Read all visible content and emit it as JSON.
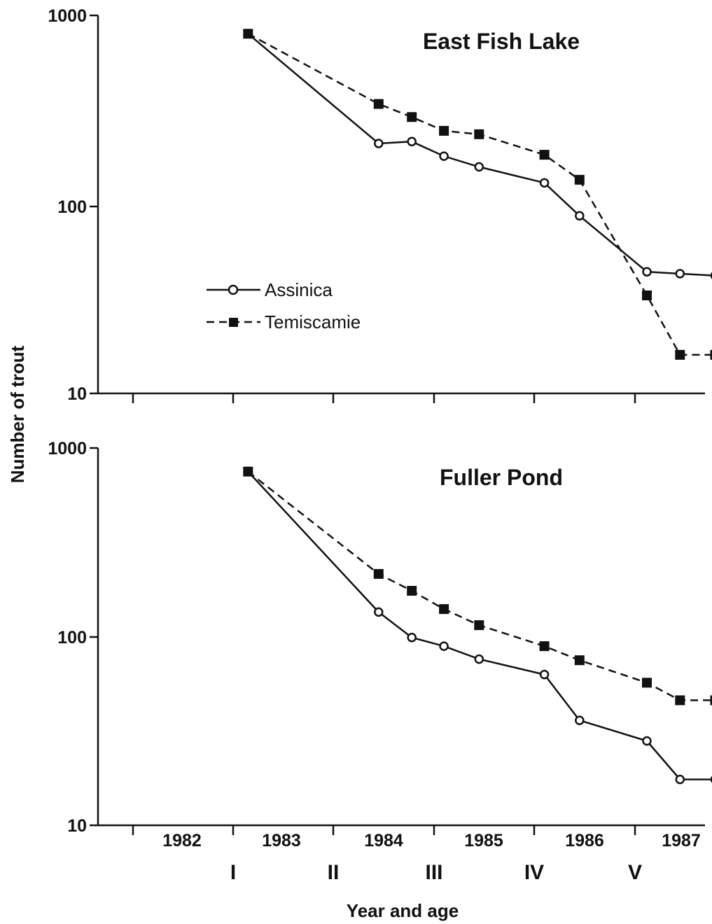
{
  "chart_data": [
    {
      "type": "line",
      "title": "East Fish Lake",
      "ylabel": "Number of trout",
      "y_scale": "log",
      "ylim": [
        10,
        1000
      ],
      "y_ticks": [
        "1000",
        "100",
        "10"
      ],
      "series": [
        {
          "name": "Assinica",
          "marker": "open-circle",
          "line": "solid",
          "color": "#111111",
          "points": [
            {
              "x": 1982.65,
              "y": 800
            },
            {
              "x": 1983.95,
              "y": 210
            },
            {
              "x": 1984.28,
              "y": 215
            },
            {
              "x": 1984.6,
              "y": 180
            },
            {
              "x": 1984.95,
              "y": 158
            },
            {
              "x": 1985.6,
              "y": 130
            },
            {
              "x": 1985.95,
              "y": 87
            },
            {
              "x": 1986.62,
              "y": 44
            },
            {
              "x": 1986.95,
              "y": 43
            },
            {
              "x": 1987.3,
              "y": 42
            }
          ]
        },
        {
          "name": "Temiscamie",
          "marker": "filled-square",
          "line": "dashed",
          "color": "#111111",
          "points": [
            {
              "x": 1982.65,
              "y": 800
            },
            {
              "x": 1983.95,
              "y": 340
            },
            {
              "x": 1984.28,
              "y": 290
            },
            {
              "x": 1984.6,
              "y": 245
            },
            {
              "x": 1984.95,
              "y": 235
            },
            {
              "x": 1985.6,
              "y": 183
            },
            {
              "x": 1985.95,
              "y": 135
            },
            {
              "x": 1986.62,
              "y": 33
            },
            {
              "x": 1986.95,
              "y": 16
            },
            {
              "x": 1987.3,
              "y": 16
            }
          ]
        }
      ],
      "legend": {
        "placement": "middle-left",
        "entries": [
          "Assinica",
          "Temiscamie"
        ]
      }
    },
    {
      "type": "line",
      "title": "Fuller Pond",
      "xlabel": "Year and age",
      "y_scale": "log",
      "ylim": [
        10,
        1000
      ],
      "y_ticks": [
        "1000",
        "100",
        "10"
      ],
      "x_year_labels": [
        "1982",
        "1983",
        "1984",
        "1985",
        "1986",
        "1987"
      ],
      "x_age_labels": [
        "I",
        "II",
        "III",
        "IV",
        "V"
      ],
      "series": [
        {
          "name": "Assinica",
          "marker": "open-circle",
          "line": "solid",
          "color": "#111111",
          "points": [
            {
              "x": 1982.65,
              "y": 750
            },
            {
              "x": 1983.95,
              "y": 135
            },
            {
              "x": 1984.28,
              "y": 99
            },
            {
              "x": 1984.6,
              "y": 89
            },
            {
              "x": 1984.95,
              "y": 76
            },
            {
              "x": 1985.6,
              "y": 63
            },
            {
              "x": 1985.95,
              "y": 36
            },
            {
              "x": 1986.62,
              "y": 28
            },
            {
              "x": 1986.95,
              "y": 17.5
            },
            {
              "x": 1987.3,
              "y": 17.5
            }
          ]
        },
        {
          "name": "Temiscamie",
          "marker": "filled-square",
          "line": "dashed",
          "color": "#111111",
          "points": [
            {
              "x": 1982.65,
              "y": 750
            },
            {
              "x": 1983.95,
              "y": 215
            },
            {
              "x": 1984.28,
              "y": 175
            },
            {
              "x": 1984.6,
              "y": 140
            },
            {
              "x": 1984.95,
              "y": 115
            },
            {
              "x": 1985.6,
              "y": 89
            },
            {
              "x": 1985.95,
              "y": 75
            },
            {
              "x": 1986.62,
              "y": 57
            },
            {
              "x": 1986.95,
              "y": 46
            },
            {
              "x": 1987.3,
              "y": 46
            }
          ]
        }
      ]
    }
  ]
}
